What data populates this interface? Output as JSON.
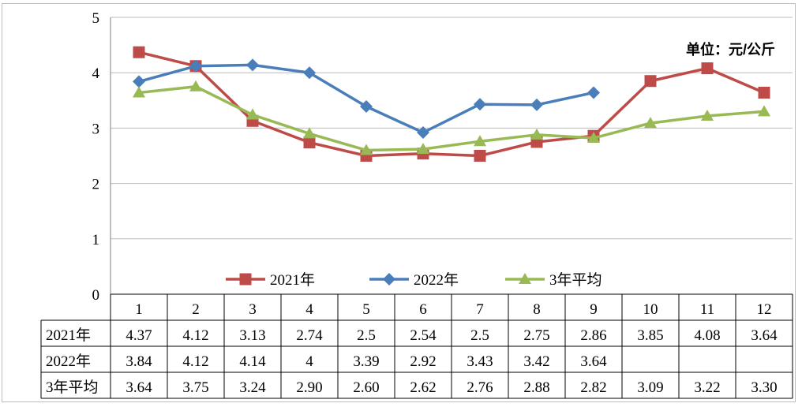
{
  "chart_data": {
    "type": "line",
    "unit_label": "单位：元/公斤",
    "categories": [
      "1",
      "2",
      "3",
      "4",
      "5",
      "6",
      "7",
      "8",
      "9",
      "10",
      "11",
      "12"
    ],
    "ylim": [
      0,
      5
    ],
    "yticks": [
      "0",
      "1",
      "2",
      "3",
      "4",
      "5"
    ],
    "grid": true,
    "legend_position": "bottom",
    "series": [
      {
        "name": "2021年",
        "color": "#be4b48",
        "marker": "square",
        "values": [
          4.37,
          4.12,
          3.13,
          2.74,
          2.5,
          2.54,
          2.5,
          2.75,
          2.86,
          3.85,
          4.08,
          3.64
        ],
        "table_values": [
          "4.37",
          "4.12",
          "3.13",
          "2.74",
          "2.5",
          "2.54",
          "2.5",
          "2.75",
          "2.86",
          "3.85",
          "4.08",
          "3.64"
        ]
      },
      {
        "name": "2022年",
        "color": "#4a7ebb",
        "marker": "diamond",
        "values": [
          3.84,
          4.12,
          4.14,
          4,
          3.39,
          2.92,
          3.43,
          3.42,
          3.64,
          null,
          null,
          null
        ],
        "table_values": [
          "3.84",
          "4.12",
          "4.14",
          "4",
          "3.39",
          "2.92",
          "3.43",
          "3.42",
          "3.64",
          "",
          "",
          ""
        ]
      },
      {
        "name": "3年平均",
        "color": "#98b954",
        "marker": "triangle",
        "values": [
          3.64,
          3.75,
          3.24,
          2.9,
          2.6,
          2.62,
          2.76,
          2.88,
          2.82,
          3.09,
          3.22,
          3.3
        ],
        "table_values": [
          "3.64",
          "3.75",
          "3.24",
          "2.90",
          "2.60",
          "2.62",
          "2.76",
          "2.88",
          "2.82",
          "3.09",
          "3.22",
          "3.30"
        ]
      }
    ]
  }
}
